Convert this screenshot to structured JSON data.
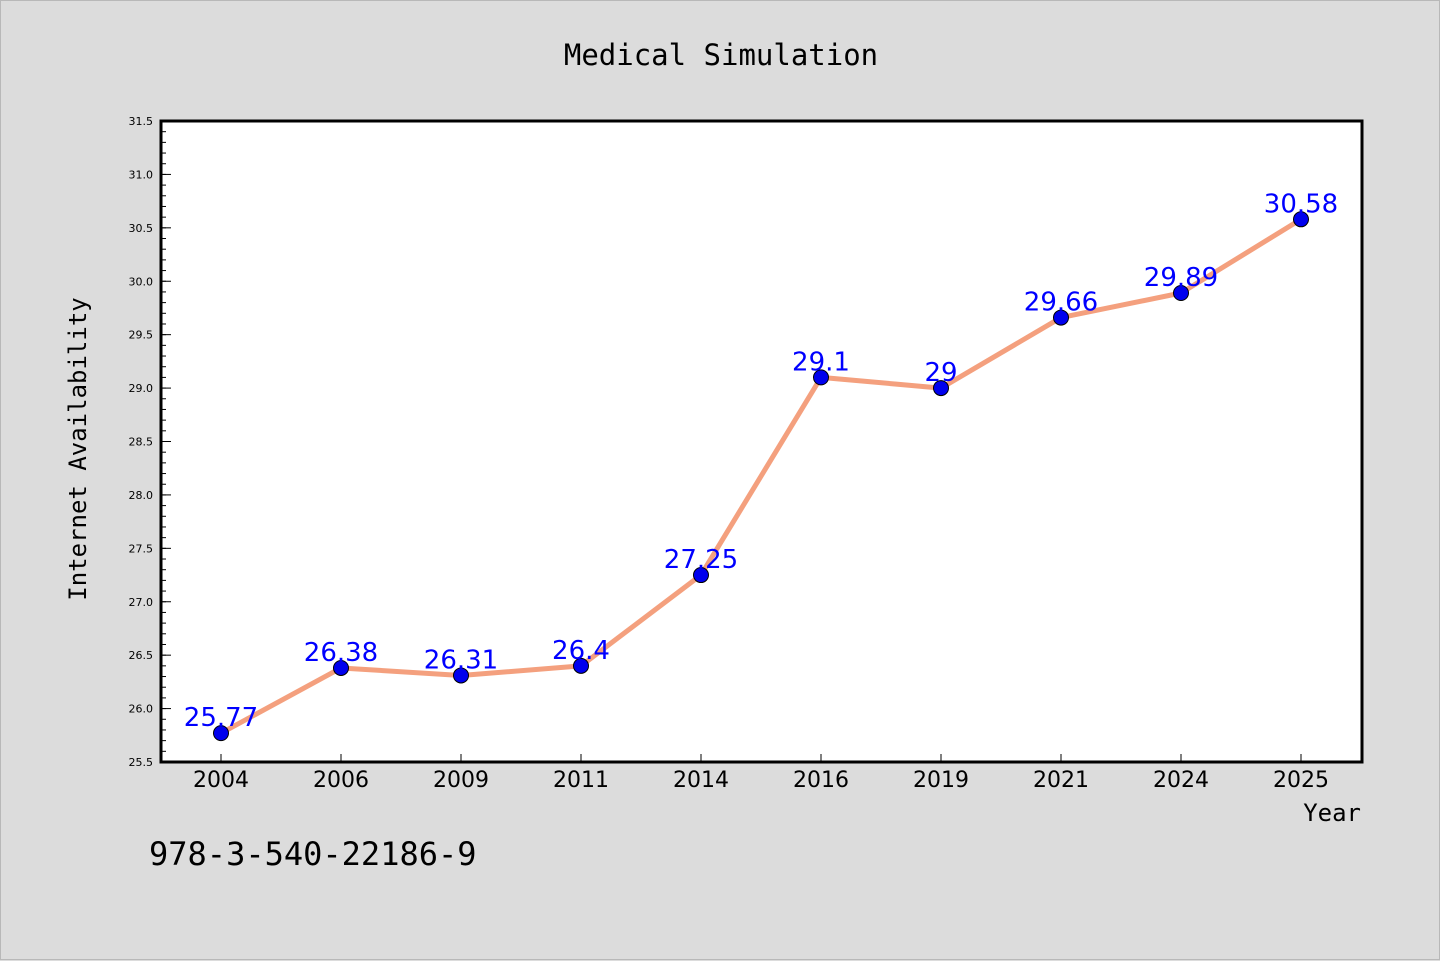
{
  "chart_data": {
    "type": "line",
    "title": "Medical Simulation",
    "xlabel": "Year",
    "ylabel": "Internet Availability",
    "categories": [
      "2004",
      "2006",
      "2009",
      "2011",
      "2014",
      "2016",
      "2019",
      "2021",
      "2024",
      "2025"
    ],
    "series": [
      {
        "values": [
          25.77,
          26.38,
          26.31,
          26.4,
          27.25,
          29.1,
          29.0,
          29.66,
          29.89,
          30.58
        ],
        "data_labels": [
          "25.77",
          "26.38",
          "26.31",
          "26.4",
          "27.25",
          "29.1",
          "29",
          "29.66",
          "29.89",
          "30.58"
        ],
        "line_color": "#f4a07e",
        "marker_color": "#0000ee",
        "label_color": "#0000ff"
      }
    ],
    "ylim": [
      25.5,
      31.5
    ],
    "yticks": [
      "25.5",
      "26.0",
      "26.5",
      "27.0",
      "27.5",
      "28.0",
      "28.5",
      "29.0",
      "29.5",
      "30.0",
      "30.5",
      "31.0",
      "31.5"
    ],
    "grid": false,
    "legend": "none"
  },
  "footer_text": "978-3-540-22186-9",
  "colors": {
    "background": "#dcdcdc",
    "plot_area": "#ffffff",
    "axis": "#000000"
  }
}
